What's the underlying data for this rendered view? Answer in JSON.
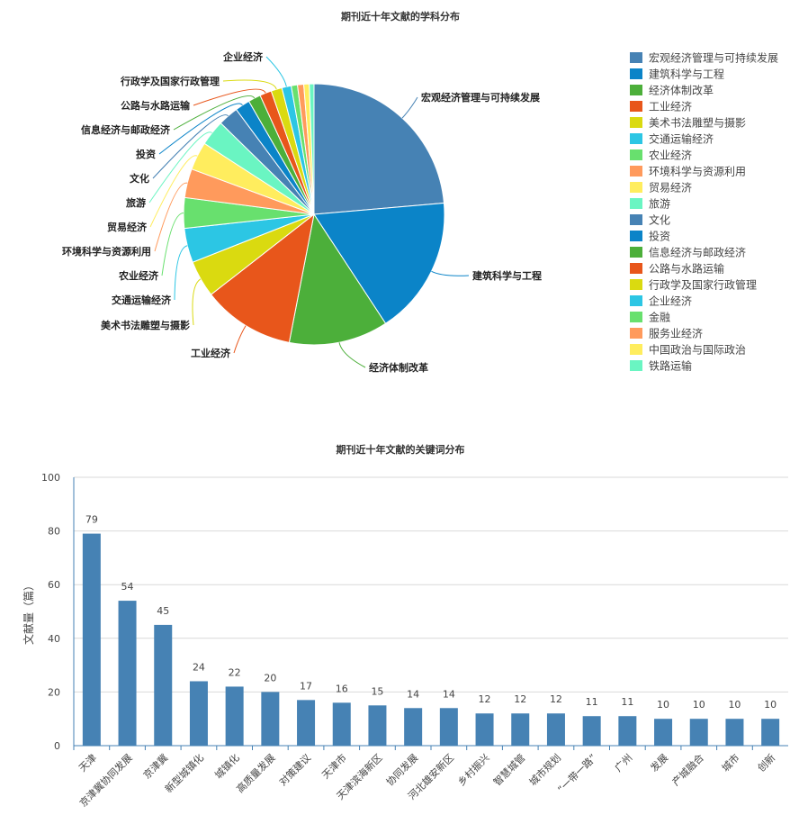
{
  "chart_data": [
    {
      "type": "pie",
      "title": "期刊近十年文献的学科分布",
      "legend_position": "right",
      "slices": [
        {
          "name": "宏观经济管理与可持续发展",
          "value": 24.4,
          "color": "#4682B4"
        },
        {
          "name": "建筑科学与工程",
          "value": 17.7,
          "color": "#0B84C8"
        },
        {
          "name": "经济体制改革",
          "value": 12.7,
          "color": "#4CAF3A"
        },
        {
          "name": "工业经济",
          "value": 11.8,
          "color": "#E8561B"
        },
        {
          "name": "美术书法雕塑与摄影",
          "value": 4.7,
          "color": "#DADA10"
        },
        {
          "name": "交通运输经济",
          "value": 4.4,
          "color": "#2CC6E4"
        },
        {
          "name": "农业经济",
          "value": 3.9,
          "color": "#68E06E"
        },
        {
          "name": "环境科学与资源利用",
          "value": 3.7,
          "color": "#FF9A5C"
        },
        {
          "name": "贸易经济",
          "value": 3.6,
          "color": "#FFED5E"
        },
        {
          "name": "旅游",
          "value": 3.3,
          "color": "#6AF5C2"
        },
        {
          "name": "文化",
          "value": 2.6,
          "color": "#4682B4"
        },
        {
          "name": "投资",
          "value": 1.9,
          "color": "#0B84C8"
        },
        {
          "name": "信息经济与邮政经济",
          "value": 1.6,
          "color": "#4CAF3A"
        },
        {
          "name": "公路与水路运输",
          "value": 1.5,
          "color": "#E8561B"
        },
        {
          "name": "行政学及国家行政管理",
          "value": 1.4,
          "color": "#DADA10"
        },
        {
          "name": "企业经济",
          "value": 1.2,
          "color": "#2CC6E4"
        },
        {
          "name": "金融",
          "value": 0.8,
          "color": "#68E06E"
        },
        {
          "name": "服务业经济",
          "value": 0.8,
          "color": "#FF9A5C"
        },
        {
          "name": "中国政治与国际政治",
          "value": 0.7,
          "color": "#FFED5E"
        },
        {
          "name": "铁路运输",
          "value": 0.6,
          "color": "#6AF5C2"
        }
      ],
      "outer_labels": [
        "宏观经济管理与可持续发展",
        "建筑科学与工程",
        "经济体制改革",
        "工业经济",
        "美术书法雕塑与摄影",
        "交通运输经济",
        "农业经济",
        "环境科学与资源利用",
        "贸易经济",
        "旅游",
        "文化",
        "投资",
        "信息经济与邮政经济",
        "公路与水路运输",
        "行政学及国家行政管理",
        "企业经济"
      ]
    },
    {
      "type": "bar",
      "title": "期刊近十年文献的关键词分布",
      "ylabel": "文献量（篇）",
      "ylim": [
        0,
        100
      ],
      "yticks": [
        0,
        20,
        40,
        60,
        80,
        100
      ],
      "grid": true,
      "bar_color": "#4682B4",
      "categories": [
        "天津",
        "京津冀协同发展",
        "京津冀",
        "新型城镇化",
        "城镇化",
        "高质量发展",
        "对策建议",
        "天津市",
        "天津滨海新区",
        "协同发展",
        "河北雄安新区",
        "乡村振兴",
        "智慧城管",
        "城市规划",
        "“一带一路”",
        "广州",
        "发展",
        "产城融合",
        "城市",
        "创新"
      ],
      "values": [
        79,
        54,
        45,
        24,
        22,
        20,
        17,
        16,
        15,
        14,
        14,
        12,
        12,
        12,
        11,
        11,
        10,
        10,
        10,
        10
      ]
    }
  ]
}
